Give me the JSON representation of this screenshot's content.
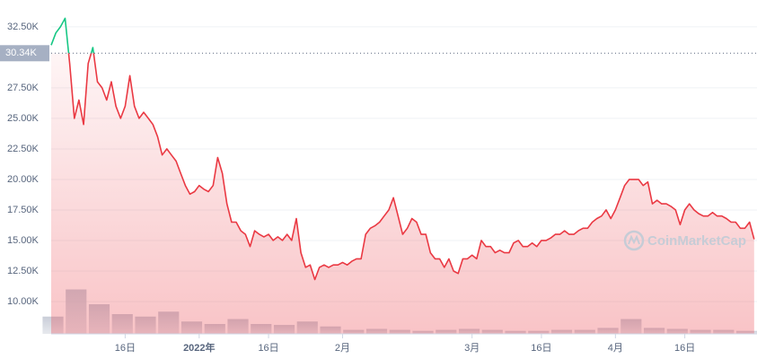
{
  "chart_data": {
    "type": "line",
    "x": [
      0,
      1,
      2,
      3,
      4,
      5,
      6,
      7,
      8,
      9,
      10,
      11,
      12,
      13,
      14,
      15,
      16,
      17,
      18,
      19,
      20,
      21,
      22,
      23,
      24,
      25,
      26,
      27,
      28,
      29,
      30,
      31,
      32,
      33,
      34,
      35,
      36,
      37,
      38,
      39,
      40,
      41,
      42,
      43,
      44,
      45,
      46,
      47,
      48,
      49,
      50,
      51,
      52,
      53,
      54,
      55,
      56,
      57,
      58,
      59,
      60,
      61,
      62,
      63,
      64,
      65,
      66,
      67,
      68,
      69,
      70,
      71,
      72,
      73,
      74,
      75,
      76,
      77,
      78,
      79,
      80,
      81,
      82,
      83,
      84,
      85,
      86,
      87,
      88,
      89,
      90,
      91,
      92,
      93,
      94,
      95,
      96,
      97,
      98,
      99,
      100,
      101,
      102,
      103,
      104,
      105,
      106,
      107,
      108,
      109,
      110,
      111,
      112,
      113,
      114,
      115,
      116,
      117,
      118,
      119,
      120,
      121,
      122,
      123,
      124,
      125,
      126,
      127,
      128,
      129,
      130,
      131,
      132,
      133,
      134,
      135,
      136,
      137,
      138,
      139,
      140,
      141,
      142,
      143,
      144,
      145,
      146,
      147,
      148,
      149,
      150,
      151,
      152
    ],
    "values": [
      31000,
      32000,
      32500,
      33200,
      29500,
      25000,
      26500,
      24500,
      29500,
      30800,
      28000,
      27500,
      26500,
      28000,
      26000,
      25000,
      26000,
      28500,
      26000,
      25000,
      25500,
      25000,
      24500,
      23500,
      22000,
      22500,
      22000,
      21500,
      20500,
      19500,
      18800,
      19000,
      19500,
      19200,
      19000,
      19500,
      21800,
      20500,
      18000,
      16500,
      16500,
      15800,
      15500,
      14500,
      15800,
      15500,
      15300,
      15500,
      15000,
      15300,
      15000,
      15500,
      15000,
      16800,
      14000,
      12800,
      13000,
      11800,
      12800,
      13000,
      12800,
      13000,
      13000,
      13200,
      13000,
      13300,
      13500,
      13500,
      15500,
      16000,
      16200,
      16500,
      17000,
      17500,
      18500,
      17000,
      15500,
      16000,
      16800,
      16500,
      15500,
      15500,
      14000,
      13500,
      13500,
      12800,
      13500,
      12500,
      12300,
      13500,
      13500,
      13800,
      13500,
      15000,
      14500,
      14500,
      14000,
      14200,
      14000,
      14000,
      14800,
      15000,
      14500,
      14500,
      14800,
      14500,
      15000,
      15000,
      15200,
      15500,
      15500,
      15800,
      15500,
      15500,
      15800,
      16000,
      16000,
      16500,
      16800,
      17000,
      17500,
      16800,
      17500,
      18500,
      19500,
      20000,
      20000,
      20000,
      19500,
      19800,
      18000,
      18300,
      18000,
      18000,
      17800,
      17500,
      16300,
      17500,
      18000,
      17500,
      17200,
      17000,
      17000,
      17300,
      17000,
      17000,
      16800,
      16500,
      16500,
      16000,
      16000,
      16500,
      15100
    ],
    "xlim": [
      0,
      153
    ],
    "xticks": [
      {
        "value": 16,
        "label": "16日"
      },
      {
        "value": 32,
        "label": "2022年"
      },
      {
        "value": 47,
        "label": "16日"
      },
      {
        "value": 63,
        "label": "2月"
      },
      {
        "value": 91,
        "label": "3月"
      },
      {
        "value": 106,
        "label": "16日"
      },
      {
        "value": 122,
        "label": "4月"
      },
      {
        "value": 137,
        "label": "16日"
      }
    ],
    "ylim": [
      7350,
      34700
    ],
    "yticks": [
      {
        "value": 10000,
        "label": "10.00K"
      },
      {
        "value": 12500,
        "label": "12.50K"
      },
      {
        "value": 15000,
        "label": "15.00K"
      },
      {
        "value": 17500,
        "label": "17.50K"
      },
      {
        "value": 20000,
        "label": "20.00K"
      },
      {
        "value": 22500,
        "label": "22.50K"
      },
      {
        "value": 25000,
        "label": "25.00K"
      },
      {
        "value": 27500,
        "label": "27.50K"
      },
      {
        "value": 32500,
        "label": "32.50K"
      }
    ],
    "reference": {
      "value": 30340,
      "label": "30.34K"
    },
    "colors": {
      "above": "#16c784",
      "below": "#ea3943"
    },
    "grid": true,
    "watermark": "CoinMarketCap",
    "volume": {
      "x": [
        0,
        5,
        10,
        15,
        20,
        25,
        30,
        35,
        40,
        45,
        50,
        55,
        60,
        65,
        70,
        75,
        80,
        85,
        90,
        95,
        100,
        105,
        110,
        115,
        120,
        125,
        130,
        135,
        140,
        145,
        150
      ],
      "values": [
        35,
        90,
        60,
        40,
        35,
        45,
        25,
        20,
        30,
        20,
        18,
        25,
        15,
        8,
        10,
        8,
        6,
        8,
        10,
        8,
        6,
        6,
        8,
        8,
        12,
        30,
        12,
        10,
        8,
        8,
        6
      ],
      "ylim": [
        0,
        100
      ],
      "color": "#c3c8d4"
    }
  }
}
